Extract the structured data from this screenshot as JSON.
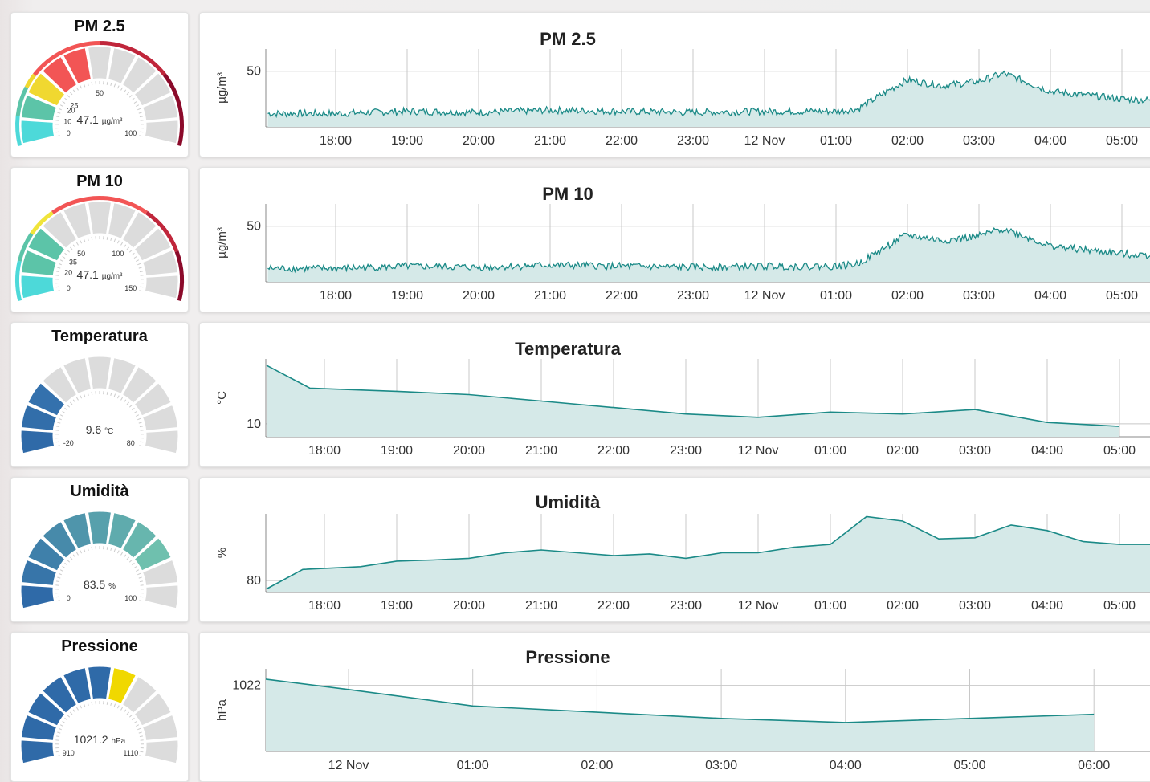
{
  "colors": {
    "line": "#1b8a87",
    "fill": "#d5e9e8",
    "grid": "#c8c8c8",
    "gauge_track": "#dcdcdc"
  },
  "panels": [
    {
      "id": "pm25",
      "title": "PM 2.5",
      "gauge": {
        "value_label": "47.1",
        "unit": "µg/m³",
        "min": 0,
        "max": 100,
        "value": 47.1,
        "scale_labels": [
          {
            "text": "0",
            "v": 0
          },
          {
            "text": "10",
            "v": 10
          },
          {
            "text": "20",
            "v": 20
          },
          {
            "text": "25",
            "v": 25
          },
          {
            "text": "50",
            "v": 50
          },
          {
            "text": "100",
            "v": 100
          }
        ],
        "bands": [
          {
            "from": 0,
            "to": 10,
            "color": "#4dd9d9"
          },
          {
            "from": 10,
            "to": 20,
            "color": "#5cc4a8"
          },
          {
            "from": 20,
            "to": 25,
            "color": "#f0d830"
          },
          {
            "from": 25,
            "to": 50,
            "color": "#f25555"
          },
          {
            "from": 50,
            "to": 75,
            "color": "#c0263b"
          },
          {
            "from": 75,
            "to": 100,
            "color": "#8b0a2a"
          }
        ]
      },
      "chart_data": {
        "type": "area",
        "title": "PM 2.5",
        "ylabel": "µg/m³",
        "yticks": [
          "50"
        ],
        "xticks": [
          "18:00",
          "19:00",
          "20:00",
          "21:00",
          "22:00",
          "23:00",
          "12 Nov",
          "01:00",
          "02:00",
          "03:00",
          "04:00",
          "05:00"
        ],
        "ylim": [
          25,
          60
        ],
        "series": [
          {
            "x_hours": [
              0,
              1,
              2,
              3,
              4,
              5,
              6,
              7,
              7.3,
              7.9,
              8,
              8.5,
              9,
              9.35,
              10,
              11,
              12.2
            ],
            "values": [
              31,
              32,
              31.5,
              32.5,
              32,
              31.5,
              32,
              32,
              33,
              44.5,
              46,
              43.5,
              45.5,
              49,
              41,
              37.5,
              36
            ]
          }
        ]
      }
    },
    {
      "id": "pm10",
      "title": "PM 10",
      "gauge": {
        "value_label": "47.1",
        "unit": "µg/m³",
        "min": 0,
        "max": 150,
        "value": 47.1,
        "scale_labels": [
          {
            "text": "0",
            "v": 0
          },
          {
            "text": "20",
            "v": 20
          },
          {
            "text": "35",
            "v": 35
          },
          {
            "text": "50",
            "v": 50
          },
          {
            "text": "100",
            "v": 100
          },
          {
            "text": "150",
            "v": 150
          }
        ],
        "bands": [
          {
            "from": 0,
            "to": 20,
            "color": "#4dd9d9"
          },
          {
            "from": 20,
            "to": 35,
            "color": "#5cc4a8"
          },
          {
            "from": 35,
            "to": 50,
            "color": "#f0e43a"
          },
          {
            "from": 50,
            "to": 100,
            "color": "#f25555"
          },
          {
            "from": 100,
            "to": 125,
            "color": "#c0263b"
          },
          {
            "from": 125,
            "to": 150,
            "color": "#8b0a2a"
          }
        ]
      },
      "chart_data": {
        "type": "area",
        "title": "PM 10",
        "ylabel": "µg/m³",
        "yticks": [
          "50"
        ],
        "xticks": [
          "18:00",
          "19:00",
          "20:00",
          "21:00",
          "22:00",
          "23:00",
          "12 Nov",
          "01:00",
          "02:00",
          "03:00",
          "04:00",
          "05:00"
        ],
        "ylim": [
          25,
          60
        ],
        "series": [
          {
            "x_hours": [
              0,
              1,
              2,
              3,
              4,
              5,
              6,
              7,
              7.3,
              7.9,
              8,
              8.5,
              9,
              9.35,
              10,
              11,
              12.2
            ],
            "values": [
              31,
              32,
              31.5,
              32.5,
              32,
              31.5,
              32,
              32,
              33,
              44.5,
              46,
              43.5,
              45.5,
              49,
              41,
              37.5,
              36
            ]
          }
        ]
      }
    },
    {
      "id": "temp",
      "title": "Temperatura",
      "gauge": {
        "value_label": "9.6",
        "unit": "°C",
        "min": -20,
        "max": 80,
        "value": 9.6,
        "scale_labels": [
          {
            "text": "-20",
            "v": -20
          },
          {
            "text": "80",
            "v": 80
          }
        ],
        "bands": [
          {
            "from": -20,
            "to": 80,
            "color": "#dcdcdc"
          }
        ],
        "fill_gradient": [
          "#2f6aa8",
          "#4a8fbf"
        ]
      },
      "chart_data": {
        "type": "area",
        "title": "Temperatura",
        "ylabel": "°C",
        "yticks": [
          "10"
        ],
        "xticks": [
          "18:00",
          "19:00",
          "20:00",
          "21:00",
          "22:00",
          "23:00",
          "12 Nov",
          "01:00",
          "02:00",
          "03:00",
          "04:00",
          "05:00"
        ],
        "ylim": [
          8,
          20
        ],
        "series": [
          {
            "x_hours": [
              -0.8,
              -0.2,
              1.0,
              2.0,
              3.0,
              4.0,
              5.0,
              6.0,
              7.0,
              8.0,
              9.0,
              10.0,
              11.0,
              12.0
            ],
            "values": [
              19,
              15.5,
              15.0,
              14.5,
              13.5,
              12.5,
              11.5,
              11.0,
              11.8,
              11.5,
              12.2,
              10.2,
              9.6,
              9.0
            ]
          }
        ]
      }
    },
    {
      "id": "hum",
      "title": "Umidità",
      "gauge": {
        "value_label": "83.5",
        "unit": "%",
        "min": 0,
        "max": 100,
        "value": 83.5,
        "scale_labels": [
          {
            "text": "0",
            "v": 0
          },
          {
            "text": "100",
            "v": 100
          }
        ],
        "bands": [
          {
            "from": 0,
            "to": 100,
            "color": "#dcdcdc"
          }
        ],
        "fill_gradient": [
          "#2f6aa8",
          "#7fd6b0"
        ]
      },
      "chart_data": {
        "type": "area",
        "title": "Umidità",
        "ylabel": "%",
        "yticks": [
          "80"
        ],
        "xticks": [
          "18:00",
          "19:00",
          "20:00",
          "21:00",
          "22:00",
          "23:00",
          "12 Nov",
          "01:00",
          "02:00",
          "03:00",
          "04:00",
          "05:00"
        ],
        "ylim": [
          78,
          92
        ],
        "series": [
          {
            "x_hours": [
              -0.8,
              -0.3,
              0.5,
              1.0,
              1.5,
              2.0,
              2.5,
              3.0,
              3.5,
              4.0,
              4.5,
              5.0,
              5.5,
              6.0,
              6.5,
              7.0,
              7.5,
              8.0,
              8.5,
              9.0,
              9.5,
              10.0,
              10.5,
              11.0,
              11.5,
              12.0,
              12.5
            ],
            "values": [
              78.5,
              82,
              82.5,
              83.5,
              83.7,
              84,
              85,
              85.5,
              85,
              84.5,
              84.8,
              84,
              85,
              85,
              86,
              86.5,
              91.5,
              90.7,
              87.5,
              87.7,
              90,
              89,
              87,
              86.5,
              86.5,
              85,
              85.5
            ]
          }
        ]
      }
    },
    {
      "id": "press",
      "title": "Pressione",
      "gauge": {
        "value_label": "1021.2",
        "unit": "hPa",
        "min": 910,
        "max": 1110,
        "value": 1021.2,
        "scale_labels": [
          {
            "text": "910",
            "v": 910
          },
          {
            "text": "1110",
            "v": 1110
          }
        ],
        "bands": [
          {
            "from": 910,
            "to": 1110,
            "color": "#dcdcdc"
          }
        ],
        "fill_gradient": [
          "#2f6aa8",
          "#2f6aa8"
        ],
        "marker_color": "#f0d800"
      },
      "chart_data": {
        "type": "area",
        "title": "Pressione",
        "ylabel": "hPa",
        "yticks": [
          "1022"
        ],
        "xticks": [
          "12 Nov",
          "01:00",
          "02:00",
          "03:00",
          "04:00",
          "05:00",
          "06:00"
        ],
        "ylim": [
          1020.4,
          1022.4
        ],
        "series": [
          {
            "x_hours": [
              -0.67,
              0,
              1,
              2,
              3,
              4,
              5,
              6,
              7
            ],
            "values": [
              1022.15,
              1021.9,
              1021.5,
              1021.35,
              1021.2,
              1021.1,
              1021.2,
              1021.3,
              1021.4
            ]
          }
        ]
      }
    }
  ]
}
